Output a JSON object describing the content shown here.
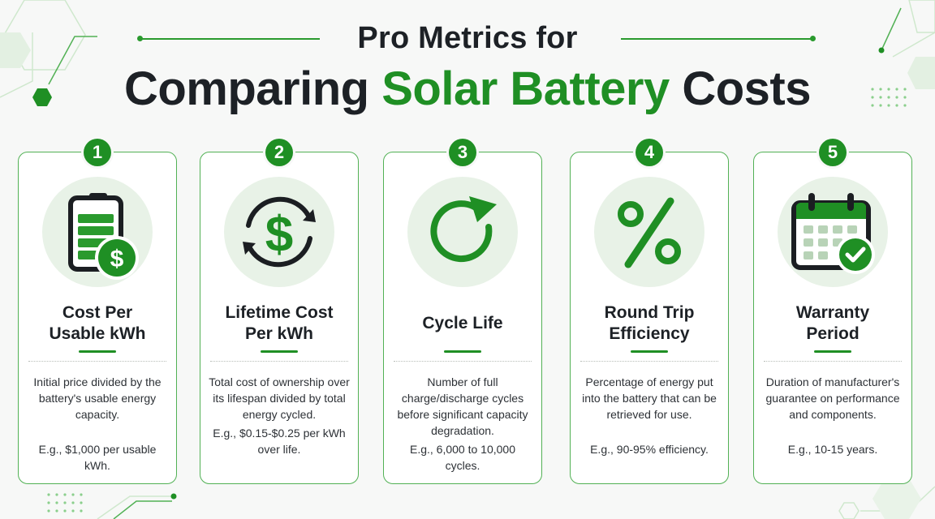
{
  "header": {
    "line1": "Pro Metrics for",
    "line2_prefix": "Comparing ",
    "line2_accent": "Solar Battery",
    "line2_suffix": " Costs"
  },
  "colors": {
    "accent": "#1f8f24",
    "border": "#52b155",
    "icon_bg": "#e8f2e7",
    "text": "#1d2126",
    "background": "#f7f8f7"
  },
  "cards": [
    {
      "number": "1",
      "icon": "battery-dollar-icon",
      "title_line1": "Cost Per",
      "title_line2": "Usable kWh",
      "description": "Initial price divided by the battery's usable energy capacity.",
      "example": "E.g., $1,000 per usable kWh."
    },
    {
      "number": "2",
      "icon": "dollar-cycle-icon",
      "title_line1": "Lifetime Cost",
      "title_line2": "Per kWh",
      "description": "Total cost of ownership over its lifespan divided by total energy cycled.",
      "example": "E.g., $0.15-$0.25 per kWh over life."
    },
    {
      "number": "3",
      "icon": "refresh-arrow-icon",
      "title_line1": "Cycle Life",
      "title_line2": "",
      "description": "Number of full charge/discharge cycles before significant capacity degradation.",
      "example": "E.g., 6,000 to 10,000 cycles."
    },
    {
      "number": "4",
      "icon": "percent-icon",
      "title_line1": "Round Trip",
      "title_line2": "Efficiency",
      "description": "Percentage of energy put into the battery that can be retrieved for use.",
      "example": "E.g., 90-95% efficiency."
    },
    {
      "number": "5",
      "icon": "calendar-check-icon",
      "title_line1": "Warranty",
      "title_line2": "Period",
      "description": "Duration of manufacturer's guarantee on performance and components.",
      "example": "E.g., 10-15 years."
    }
  ]
}
